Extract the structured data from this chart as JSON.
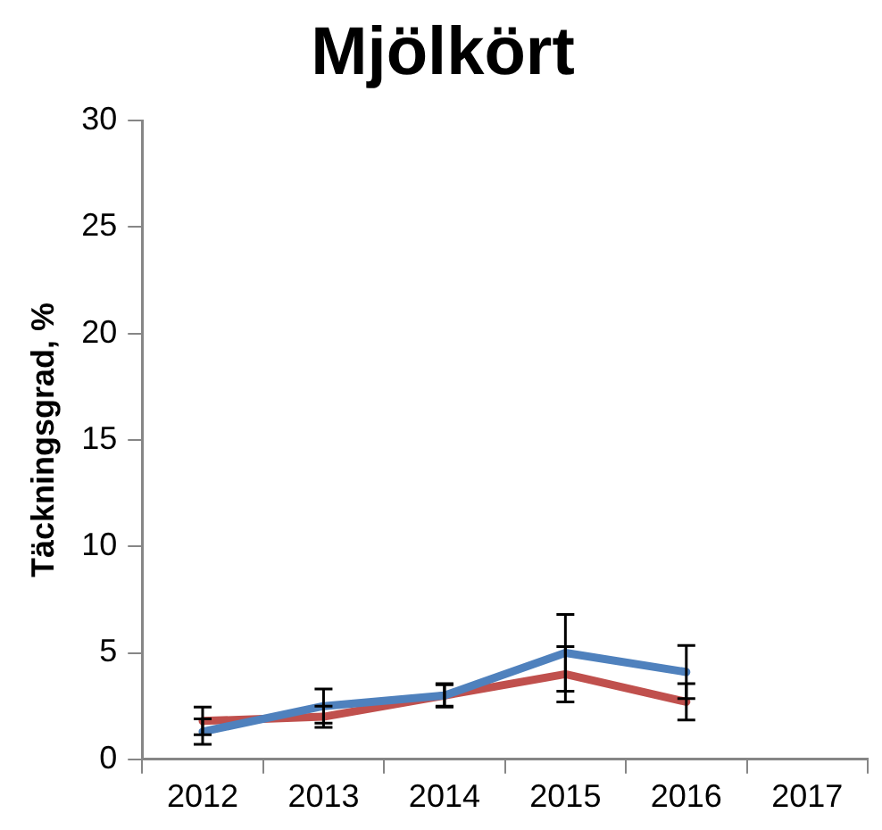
{
  "chart_data": {
    "type": "line",
    "title": "Mjölkört",
    "ylabel": "Täckningsgrad, %",
    "categories": [
      "2012",
      "2013",
      "2014",
      "2015",
      "2016",
      "2017"
    ],
    "series": [
      {
        "color": "#4f81bd",
        "values": [
          1.3,
          2.5,
          3.0,
          5.0,
          4.1,
          null
        ],
        "errors": [
          0.6,
          0.8,
          0.55,
          1.8,
          1.25,
          null
        ]
      },
      {
        "color": "#c0504d",
        "values": [
          1.8,
          2.0,
          3.0,
          4.0,
          2.7,
          null
        ],
        "errors": [
          0.65,
          0.5,
          0.5,
          1.3,
          0.85,
          null
        ]
      }
    ],
    "ylim": [
      0,
      30
    ],
    "yticks": [
      0,
      5,
      10,
      15,
      20,
      25,
      30
    ],
    "grid": false,
    "legend": false,
    "line_style": "solid"
  }
}
